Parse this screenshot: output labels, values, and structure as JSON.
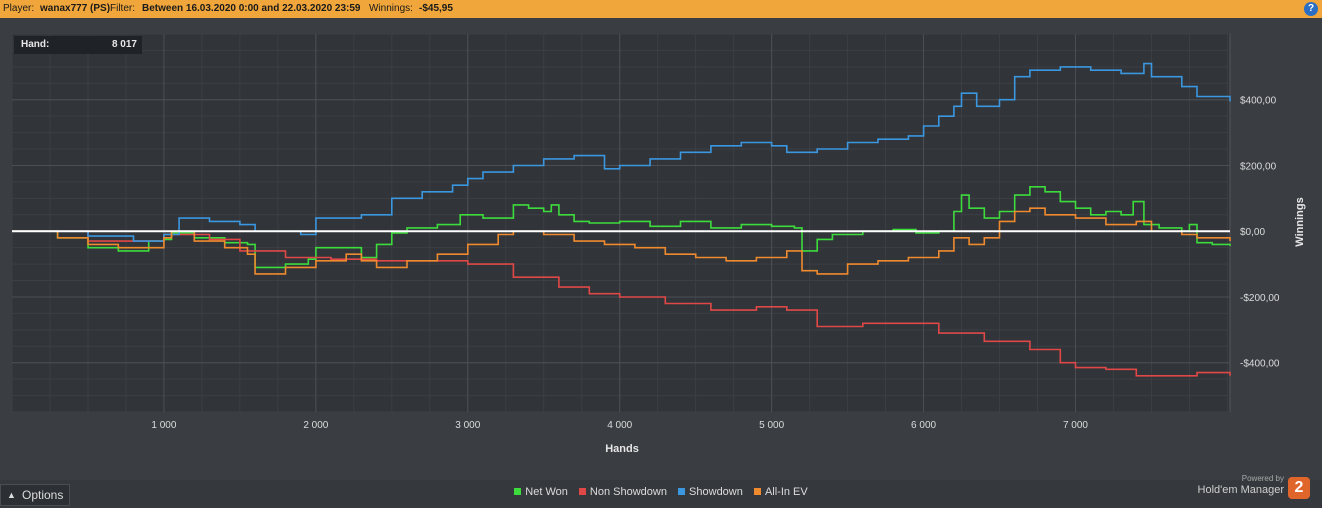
{
  "header": {
    "player_label": "Player:",
    "player_value": "wanax777 (PS)",
    "filter_label": "Filter:",
    "filter_value": "Between 16.03.2020 0:00 and 22.03.2020 23:59",
    "winnings_label": "Winnings:",
    "winnings_value": "-$45,95",
    "help_glyph": "?"
  },
  "hand_box": {
    "label": "Hand:",
    "value": "8 017"
  },
  "options": {
    "label": "Options",
    "arrow": "▲"
  },
  "brand": {
    "powered": "Powered by",
    "name": "Hold'em Manager",
    "logo": "2"
  },
  "chart_data": {
    "type": "line",
    "title": "",
    "xlabel": "Hands",
    "ylabel": "Winnings",
    "xlim": [
      0,
      8017
    ],
    "ylim": [
      -550,
      600
    ],
    "x_ticks": [
      1000,
      2000,
      3000,
      4000,
      5000,
      6000,
      7000
    ],
    "x_tick_labels": [
      "1 000",
      "2 000",
      "3 000",
      "4 000",
      "5 000",
      "6 000",
      "7 000"
    ],
    "y_ticks": [
      400,
      200,
      0,
      -200,
      -400
    ],
    "y_tick_labels": [
      "$400,00",
      "$200,00",
      "$0,00",
      "-$200,00",
      "-$400,00"
    ],
    "legend_position": "bottom",
    "grid": true,
    "series": [
      {
        "name": "Net Won",
        "color": "#3ddc3d",
        "points": [
          [
            0,
            0
          ],
          [
            300,
            -20
          ],
          [
            500,
            -50
          ],
          [
            700,
            -60
          ],
          [
            900,
            -30
          ],
          [
            1000,
            -25
          ],
          [
            1050,
            -5
          ],
          [
            1200,
            -20
          ],
          [
            1400,
            -35
          ],
          [
            1550,
            -40
          ],
          [
            1600,
            -110
          ],
          [
            1800,
            -100
          ],
          [
            1950,
            -85
          ],
          [
            2000,
            -50
          ],
          [
            2200,
            -50
          ],
          [
            2300,
            -80
          ],
          [
            2400,
            -40
          ],
          [
            2500,
            -5
          ],
          [
            2600,
            10
          ],
          [
            2800,
            20
          ],
          [
            2950,
            50
          ],
          [
            3100,
            40
          ],
          [
            3300,
            80
          ],
          [
            3400,
            70
          ],
          [
            3500,
            60
          ],
          [
            3550,
            80
          ],
          [
            3600,
            50
          ],
          [
            3700,
            30
          ],
          [
            3800,
            25
          ],
          [
            4000,
            30
          ],
          [
            4200,
            15
          ],
          [
            4400,
            30
          ],
          [
            4600,
            10
          ],
          [
            4800,
            20
          ],
          [
            5000,
            15
          ],
          [
            5150,
            10
          ],
          [
            5200,
            -60
          ],
          [
            5300,
            -25
          ],
          [
            5400,
            -10
          ],
          [
            5600,
            0
          ],
          [
            5800,
            5
          ],
          [
            5950,
            -5
          ],
          [
            6100,
            0
          ],
          [
            6200,
            60
          ],
          [
            6250,
            110
          ],
          [
            6300,
            70
          ],
          [
            6400,
            40
          ],
          [
            6500,
            60
          ],
          [
            6600,
            110
          ],
          [
            6700,
            135
          ],
          [
            6800,
            120
          ],
          [
            6900,
            90
          ],
          [
            7000,
            70
          ],
          [
            7100,
            50
          ],
          [
            7200,
            60
          ],
          [
            7300,
            50
          ],
          [
            7380,
            90
          ],
          [
            7450,
            20
          ],
          [
            7550,
            10
          ],
          [
            7700,
            0
          ],
          [
            7750,
            20
          ],
          [
            7800,
            -35
          ],
          [
            7900,
            -40
          ],
          [
            8017,
            -45
          ]
        ]
      },
      {
        "name": "Non Showdown",
        "color": "#e04848",
        "points": [
          [
            0,
            0
          ],
          [
            500,
            -30
          ],
          [
            1000,
            -10
          ],
          [
            1300,
            -25
          ],
          [
            1500,
            -60
          ],
          [
            1800,
            -80
          ],
          [
            2100,
            -85
          ],
          [
            2400,
            -90
          ],
          [
            2700,
            -90
          ],
          [
            3000,
            -100
          ],
          [
            3300,
            -140
          ],
          [
            3600,
            -170
          ],
          [
            3800,
            -190
          ],
          [
            4000,
            -200
          ],
          [
            4300,
            -220
          ],
          [
            4600,
            -240
          ],
          [
            4900,
            -230
          ],
          [
            5100,
            -240
          ],
          [
            5300,
            -290
          ],
          [
            5600,
            -280
          ],
          [
            5900,
            -280
          ],
          [
            6100,
            -310
          ],
          [
            6400,
            -335
          ],
          [
            6700,
            -360
          ],
          [
            6900,
            -400
          ],
          [
            7000,
            -415
          ],
          [
            7200,
            -420
          ],
          [
            7400,
            -440
          ],
          [
            7600,
            -440
          ],
          [
            7800,
            -430
          ],
          [
            8017,
            -440
          ]
        ]
      },
      {
        "name": "Showdown",
        "color": "#3a97e0",
        "points": [
          [
            0,
            0
          ],
          [
            500,
            -15
          ],
          [
            800,
            -30
          ],
          [
            1000,
            -10
          ],
          [
            1100,
            40
          ],
          [
            1300,
            30
          ],
          [
            1500,
            20
          ],
          [
            1600,
            0
          ],
          [
            1900,
            -10
          ],
          [
            2000,
            40
          ],
          [
            2300,
            50
          ],
          [
            2500,
            100
          ],
          [
            2700,
            120
          ],
          [
            2900,
            140
          ],
          [
            3000,
            160
          ],
          [
            3100,
            180
          ],
          [
            3300,
            200
          ],
          [
            3500,
            220
          ],
          [
            3700,
            230
          ],
          [
            3900,
            190
          ],
          [
            4000,
            200
          ],
          [
            4200,
            220
          ],
          [
            4400,
            240
          ],
          [
            4600,
            260
          ],
          [
            4800,
            270
          ],
          [
            5000,
            260
          ],
          [
            5100,
            240
          ],
          [
            5300,
            250
          ],
          [
            5500,
            270
          ],
          [
            5700,
            280
          ],
          [
            5900,
            290
          ],
          [
            6000,
            320
          ],
          [
            6100,
            350
          ],
          [
            6200,
            380
          ],
          [
            6250,
            420
          ],
          [
            6350,
            380
          ],
          [
            6500,
            400
          ],
          [
            6600,
            470
          ],
          [
            6700,
            490
          ],
          [
            6900,
            500
          ],
          [
            7100,
            490
          ],
          [
            7300,
            480
          ],
          [
            7450,
            510
          ],
          [
            7500,
            470
          ],
          [
            7700,
            440
          ],
          [
            7800,
            410
          ],
          [
            8017,
            395
          ]
        ]
      },
      {
        "name": "All-In EV",
        "color": "#ef8a2e",
        "points": [
          [
            0,
            0
          ],
          [
            300,
            -20
          ],
          [
            500,
            -40
          ],
          [
            700,
            -50
          ],
          [
            1000,
            -20
          ],
          [
            1050,
            0
          ],
          [
            1200,
            -30
          ],
          [
            1400,
            -50
          ],
          [
            1550,
            -70
          ],
          [
            1600,
            -130
          ],
          [
            1800,
            -110
          ],
          [
            2000,
            -90
          ],
          [
            2200,
            -70
          ],
          [
            2300,
            -90
          ],
          [
            2400,
            -110
          ],
          [
            2600,
            -90
          ],
          [
            2800,
            -70
          ],
          [
            3000,
            -40
          ],
          [
            3200,
            -10
          ],
          [
            3300,
            0
          ],
          [
            3500,
            -10
          ],
          [
            3700,
            -30
          ],
          [
            3900,
            -40
          ],
          [
            4100,
            -50
          ],
          [
            4300,
            -70
          ],
          [
            4500,
            -80
          ],
          [
            4700,
            -90
          ],
          [
            4900,
            -80
          ],
          [
            5100,
            -60
          ],
          [
            5200,
            -120
          ],
          [
            5300,
            -130
          ],
          [
            5500,
            -100
          ],
          [
            5700,
            -90
          ],
          [
            5900,
            -80
          ],
          [
            6100,
            -60
          ],
          [
            6200,
            -20
          ],
          [
            6300,
            -40
          ],
          [
            6400,
            -20
          ],
          [
            6500,
            30
          ],
          [
            6600,
            60
          ],
          [
            6700,
            70
          ],
          [
            6800,
            50
          ],
          [
            7000,
            40
          ],
          [
            7200,
            20
          ],
          [
            7400,
            30
          ],
          [
            7500,
            0
          ],
          [
            7700,
            -10
          ],
          [
            7800,
            -20
          ],
          [
            8017,
            -30
          ]
        ]
      },
      {
        "name": "",
        "color": "#ffffff",
        "points": [
          [
            0,
            0
          ],
          [
            8017,
            0
          ]
        ]
      }
    ]
  }
}
